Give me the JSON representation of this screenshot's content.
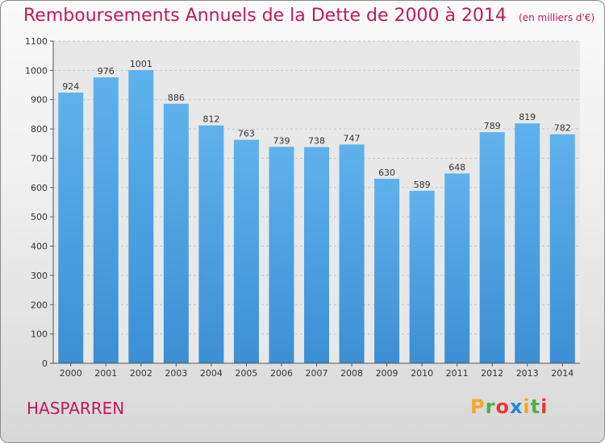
{
  "chart_data": {
    "type": "bar",
    "title": "Remboursements Annuels de la Dette de 2000 à 2014",
    "unit_label": "(en milliers d'€)",
    "categories": [
      "2000",
      "2001",
      "2002",
      "2003",
      "2004",
      "2005",
      "2006",
      "2007",
      "2008",
      "2009",
      "2010",
      "2011",
      "2012",
      "2013",
      "2014"
    ],
    "values": [
      924,
      976,
      1001,
      886,
      812,
      763,
      739,
      738,
      747,
      630,
      589,
      648,
      789,
      819,
      782
    ],
    "ylim": [
      0,
      1100
    ],
    "yticks": [
      0,
      100,
      200,
      300,
      400,
      500,
      600,
      700,
      800,
      900,
      1000,
      1100
    ],
    "grid": true,
    "xlabel": "",
    "ylabel": "",
    "bar_color": "#3c8fd4"
  },
  "location": "HASPARREN",
  "brand": {
    "letters": [
      "P",
      "r",
      "o",
      "x",
      "i",
      "t",
      "i"
    ],
    "colors": [
      "#f5a623",
      "#4caf50",
      "#e53935",
      "#1e88e5",
      "#f5a623",
      "#4caf50",
      "#e53935"
    ]
  }
}
